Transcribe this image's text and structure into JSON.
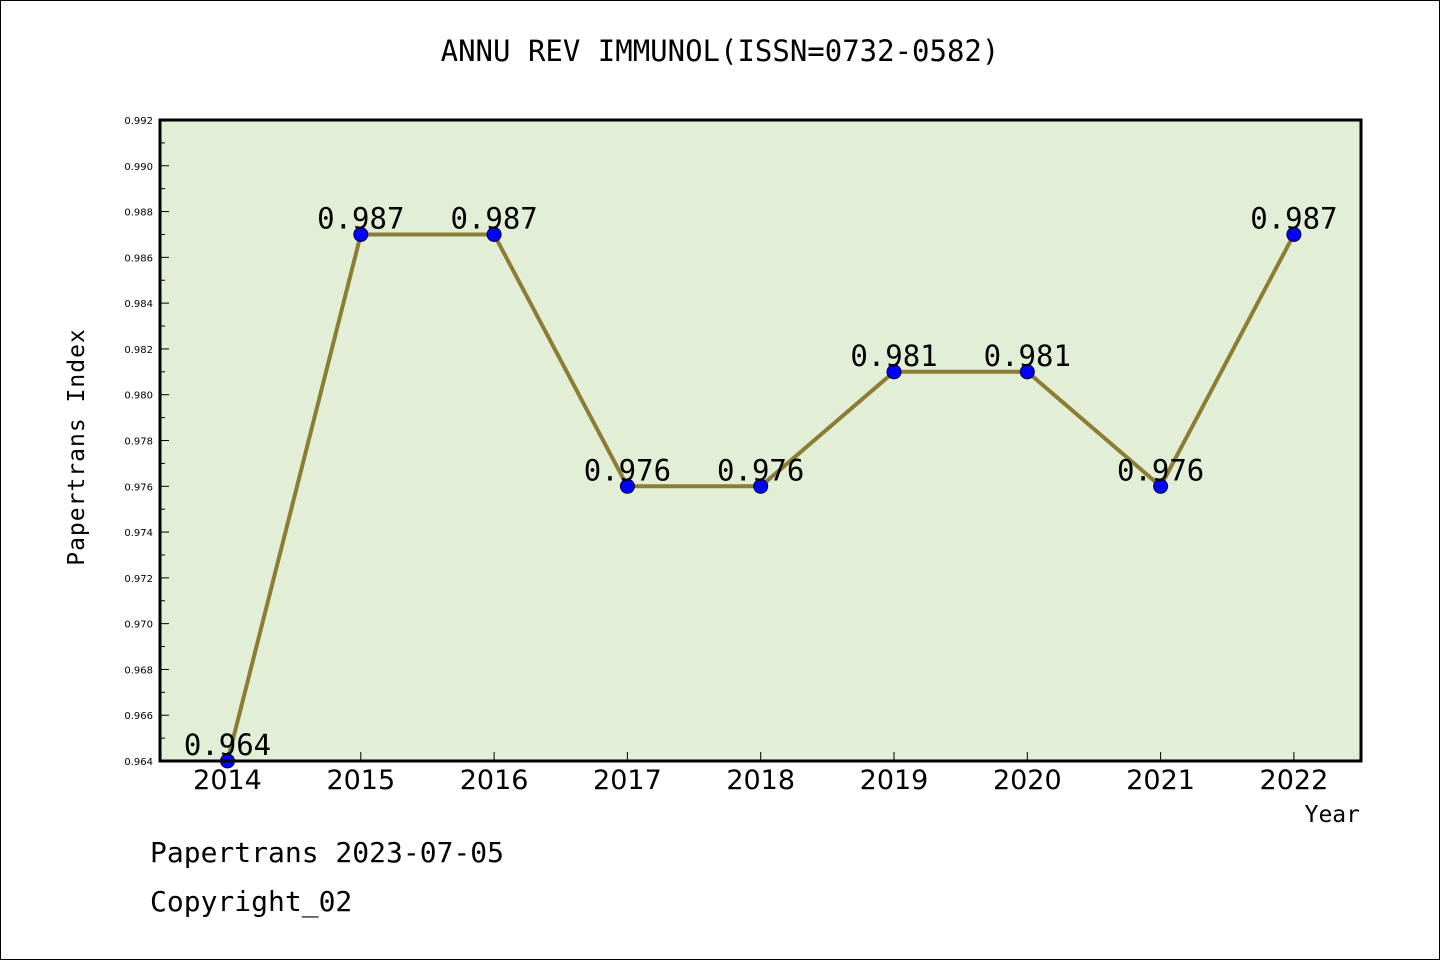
{
  "chart_data": {
    "type": "line",
    "title": "ANNU REV IMMUNOL(ISSN=0732-0582)",
    "xlabel": "Year",
    "ylabel": "Papertrans Index",
    "categories": [
      "2014",
      "2015",
      "2016",
      "2017",
      "2018",
      "2019",
      "2020",
      "2021",
      "2022"
    ],
    "series": [
      {
        "values": [
          0.964,
          0.987,
          0.987,
          0.976,
          0.976,
          0.981,
          0.981,
          0.976,
          0.987
        ]
      }
    ],
    "data_labels": [
      "0.964",
      "0.987",
      "0.987",
      "0.976",
      "0.976",
      "0.981",
      "0.981",
      "0.976",
      "0.987"
    ],
    "ylim": [
      0.964,
      0.992
    ],
    "yticks": [
      "0.964",
      "0.966",
      "0.968",
      "0.970",
      "0.972",
      "0.974",
      "0.976",
      "0.978",
      "0.980",
      "0.982",
      "0.984",
      "0.986",
      "0.988",
      "0.990",
      "0.992"
    ],
    "grid": false,
    "legend": "none",
    "colors": {
      "plot_background": "#e2efd6",
      "line": "#8c7d35",
      "marker": "#0000ff"
    }
  },
  "footer": {
    "line1": "Papertrans 2023-07-05",
    "line2": "Copyright_02"
  }
}
